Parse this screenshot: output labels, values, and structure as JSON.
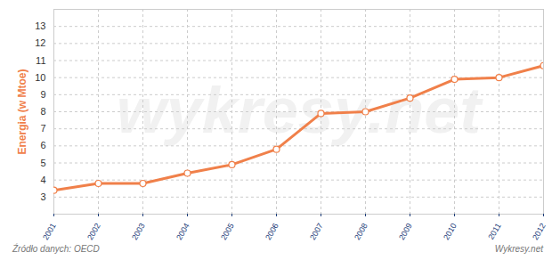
{
  "chart_data": {
    "type": "line",
    "y_label": "Energia (w Mtoe)",
    "x": [
      2001,
      2002,
      2003,
      2004,
      2005,
      2006,
      2007,
      2008,
      2009,
      2010,
      2011,
      2012
    ],
    "values": [
      3.4,
      3.8,
      3.8,
      4.4,
      4.9,
      5.8,
      7.9,
      8.0,
      8.8,
      9.9,
      10.0,
      10.7
    ],
    "color": "#f0804a",
    "marker": "circle",
    "xlim": [
      2001,
      2012
    ],
    "xticks": [
      2001,
      2002,
      2003,
      2004,
      2005,
      2006,
      2007,
      2008,
      2009,
      2010,
      2011,
      2012
    ],
    "ylim": [
      2,
      14
    ],
    "yticks": [
      3,
      4,
      5,
      6,
      7,
      8,
      9,
      10,
      11,
      12,
      13
    ],
    "grid": true,
    "source": "Źródło danych: OECD",
    "credit": "Wykresy.net",
    "watermark": "wykresy.net"
  }
}
